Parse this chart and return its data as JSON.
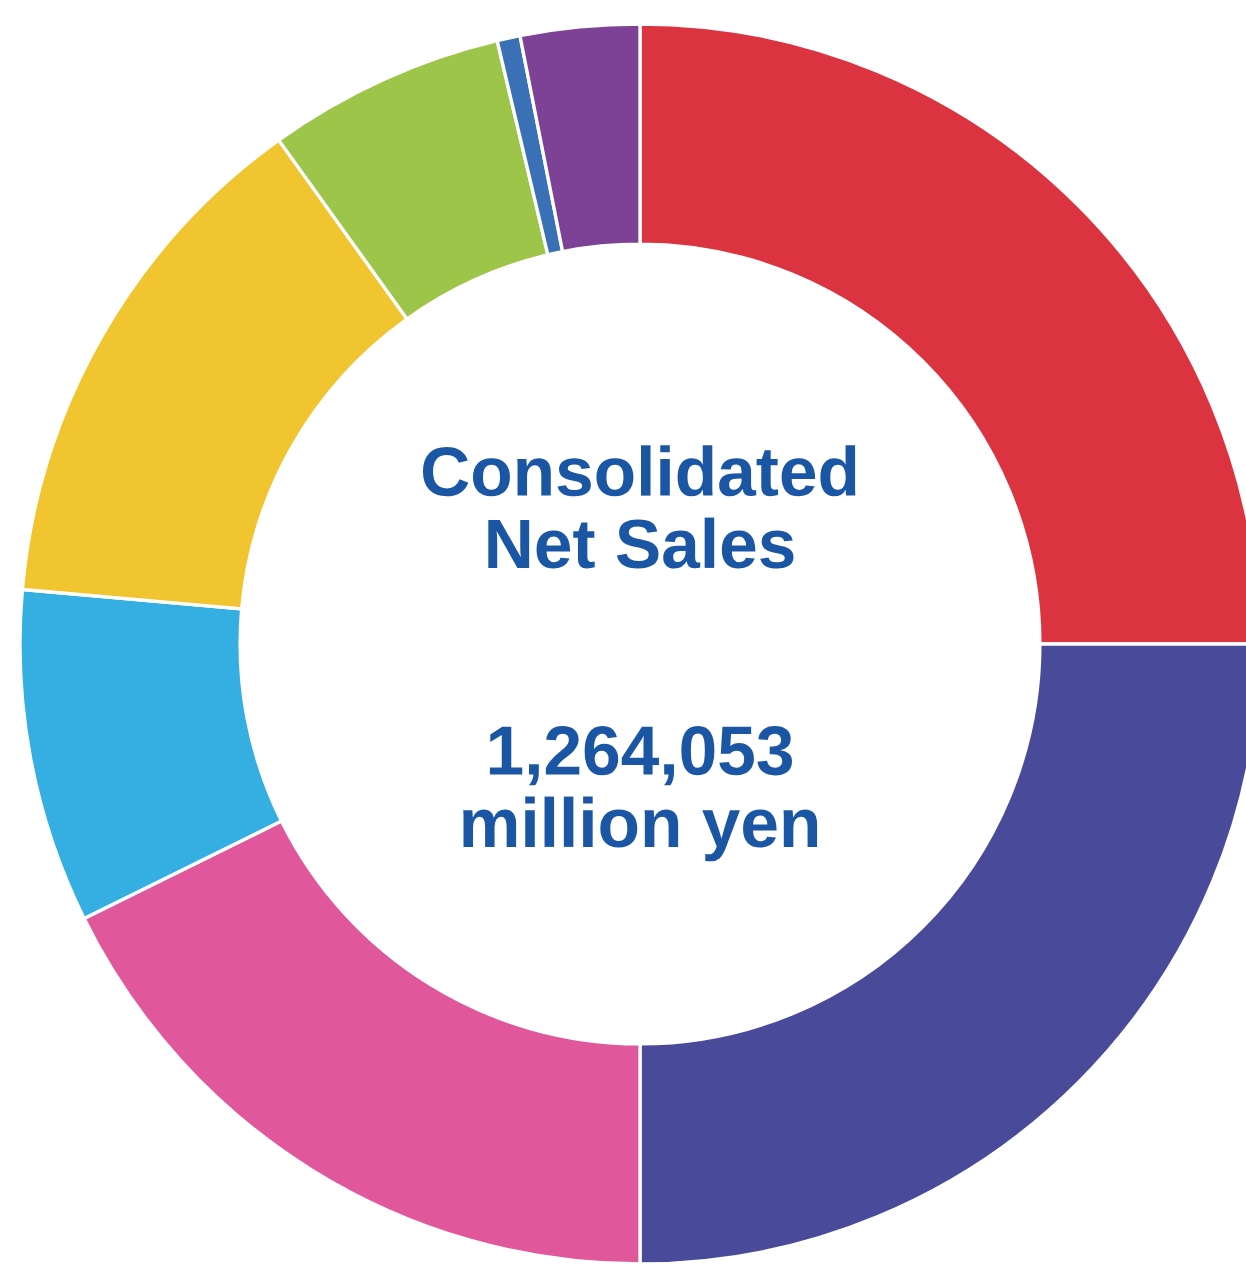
{
  "chart_data": {
    "type": "donut",
    "title": "Consolidated Net Sales",
    "subtitle": "1,264,053 million yen",
    "categories": [
      null,
      null,
      null,
      null,
      null,
      null,
      null,
      null
    ],
    "values": [
      25,
      25,
      17.7,
      8.7,
      13.7,
      6.2,
      0.6,
      3.1
    ],
    "colors": [
      "#dc3340",
      "#4a4a9a",
      "#e0579c",
      "#35aee2",
      "#f0c530",
      "#9dc54a",
      "#3a70b5",
      "#7d4296"
    ],
    "legend": false
  }
}
